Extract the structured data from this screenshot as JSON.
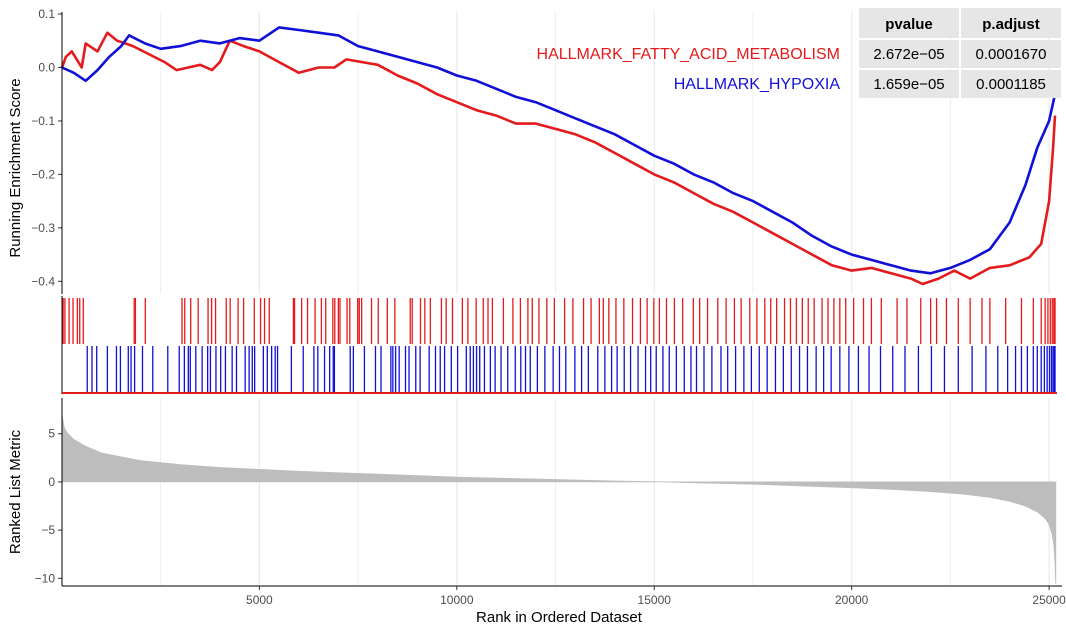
{
  "chart_data": {
    "type": "line",
    "x_range": [
      1,
      25200
    ],
    "x_ticks": [
      5000,
      10000,
      15000,
      20000,
      25000
    ],
    "xlabel": "Rank in Ordered Dataset",
    "colors": {
      "fatty": "#e41a1c",
      "hypoxia": "#1010d8",
      "metric_fill": "#bdbdbd",
      "grid": "#ebebeb",
      "table_bg": "#e6e6e6"
    },
    "es_panel": {
      "ylabel": "Running Enrichment Score",
      "ylim": [
        -0.42,
        0.1
      ],
      "y_ticks": [
        0.1,
        0.0,
        -0.1,
        -0.2,
        -0.3,
        -0.4
      ],
      "y_tick_labels": [
        "0.1",
        "0.0",
        "−0.1",
        "−0.2",
        "−0.3",
        "−0.4"
      ]
    },
    "series": [
      {
        "name": "HALLMARK_FATTY_ACID_METABOLISM",
        "pvalue": "2.672e−05",
        "padjust": "0.0001670",
        "color": "#e41a1c",
        "points": [
          [
            1,
            0.0
          ],
          [
            100,
            0.02
          ],
          [
            250,
            0.03
          ],
          [
            500,
            0.0
          ],
          [
            600,
            0.045
          ],
          [
            900,
            0.03
          ],
          [
            1150,
            0.065
          ],
          [
            1400,
            0.05
          ],
          [
            1800,
            0.04
          ],
          [
            2200,
            0.025
          ],
          [
            2600,
            0.01
          ],
          [
            2900,
            -0.005
          ],
          [
            3200,
            0.0
          ],
          [
            3500,
            0.005
          ],
          [
            3800,
            -0.005
          ],
          [
            4000,
            0.01
          ],
          [
            4250,
            0.05
          ],
          [
            4600,
            0.04
          ],
          [
            5000,
            0.03
          ],
          [
            5500,
            0.01
          ],
          [
            6000,
            -0.01
          ],
          [
            6500,
            0.0
          ],
          [
            6900,
            0.0
          ],
          [
            7200,
            0.015
          ],
          [
            7600,
            0.01
          ],
          [
            8000,
            0.005
          ],
          [
            8500,
            -0.015
          ],
          [
            9000,
            -0.03
          ],
          [
            9500,
            -0.05
          ],
          [
            10000,
            -0.065
          ],
          [
            10500,
            -0.08
          ],
          [
            11000,
            -0.09
          ],
          [
            11500,
            -0.105
          ],
          [
            12000,
            -0.105
          ],
          [
            12500,
            -0.115
          ],
          [
            13000,
            -0.125
          ],
          [
            13500,
            -0.14
          ],
          [
            14000,
            -0.16
          ],
          [
            14500,
            -0.18
          ],
          [
            15000,
            -0.2
          ],
          [
            15500,
            -0.215
          ],
          [
            16000,
            -0.235
          ],
          [
            16500,
            -0.255
          ],
          [
            17000,
            -0.27
          ],
          [
            17500,
            -0.29
          ],
          [
            18000,
            -0.31
          ],
          [
            18500,
            -0.33
          ],
          [
            19000,
            -0.35
          ],
          [
            19500,
            -0.37
          ],
          [
            20000,
            -0.38
          ],
          [
            20500,
            -0.375
          ],
          [
            21000,
            -0.385
          ],
          [
            21500,
            -0.395
          ],
          [
            21800,
            -0.405
          ],
          [
            22200,
            -0.395
          ],
          [
            22600,
            -0.38
          ],
          [
            23000,
            -0.395
          ],
          [
            23500,
            -0.375
          ],
          [
            24000,
            -0.37
          ],
          [
            24500,
            -0.355
          ],
          [
            24800,
            -0.33
          ],
          [
            25000,
            -0.25
          ],
          [
            25100,
            -0.15
          ],
          [
            25150,
            -0.09
          ]
        ]
      },
      {
        "name": "HALLMARK_HYPOXIA",
        "pvalue": "1.659e−05",
        "padjust": "0.0001185",
        "color": "#1010d8",
        "points": [
          [
            1,
            0.0
          ],
          [
            300,
            -0.01
          ],
          [
            600,
            -0.025
          ],
          [
            900,
            -0.005
          ],
          [
            1200,
            0.02
          ],
          [
            1500,
            0.04
          ],
          [
            1700,
            0.06
          ],
          [
            2100,
            0.045
          ],
          [
            2500,
            0.035
          ],
          [
            3000,
            0.04
          ],
          [
            3500,
            0.05
          ],
          [
            4000,
            0.045
          ],
          [
            4500,
            0.055
          ],
          [
            5000,
            0.05
          ],
          [
            5500,
            0.075
          ],
          [
            6000,
            0.07
          ],
          [
            6500,
            0.065
          ],
          [
            7000,
            0.06
          ],
          [
            7500,
            0.04
          ],
          [
            8000,
            0.03
          ],
          [
            8500,
            0.02
          ],
          [
            9000,
            0.01
          ],
          [
            9500,
            0.0
          ],
          [
            10000,
            -0.015
          ],
          [
            10500,
            -0.025
          ],
          [
            11000,
            -0.04
          ],
          [
            11500,
            -0.055
          ],
          [
            12000,
            -0.065
          ],
          [
            12500,
            -0.08
          ],
          [
            13000,
            -0.095
          ],
          [
            13500,
            -0.11
          ],
          [
            14000,
            -0.125
          ],
          [
            14500,
            -0.145
          ],
          [
            15000,
            -0.165
          ],
          [
            15500,
            -0.18
          ],
          [
            16000,
            -0.2
          ],
          [
            16500,
            -0.215
          ],
          [
            17000,
            -0.235
          ],
          [
            17500,
            -0.25
          ],
          [
            18000,
            -0.27
          ],
          [
            18500,
            -0.29
          ],
          [
            19000,
            -0.315
          ],
          [
            19500,
            -0.335
          ],
          [
            20000,
            -0.35
          ],
          [
            20500,
            -0.36
          ],
          [
            21000,
            -0.37
          ],
          [
            21500,
            -0.38
          ],
          [
            22000,
            -0.385
          ],
          [
            22500,
            -0.375
          ],
          [
            23000,
            -0.36
          ],
          [
            23500,
            -0.34
          ],
          [
            24000,
            -0.29
          ],
          [
            24400,
            -0.22
          ],
          [
            24700,
            -0.15
          ],
          [
            25000,
            -0.1
          ],
          [
            25150,
            -0.05
          ]
        ]
      }
    ],
    "table": {
      "headers": [
        "pvalue",
        "p.adjust"
      ]
    },
    "hits": {
      "fatty": [
        30,
        75,
        180,
        280,
        390,
        450,
        540,
        1830,
        1860,
        2110,
        3040,
        3110,
        3260,
        3450,
        3700,
        3790,
        3890,
        4160,
        4260,
        4460,
        4600,
        4870,
        5030,
        5130,
        5250,
        5860,
        5890,
        6070,
        6220,
        6410,
        6570,
        6680,
        6860,
        6910,
        7000,
        7040,
        7220,
        7290,
        7490,
        7530,
        7590,
        7840,
        8010,
        8240,
        8430,
        8820,
        8870,
        9080,
        9190,
        9330,
        9610,
        9730,
        9890,
        10140,
        10280,
        10490,
        10670,
        10790,
        10900,
        11180,
        11420,
        11610,
        11800,
        11910,
        12080,
        12280,
        12470,
        12730,
        12940,
        13210,
        13400,
        13610,
        13710,
        13850,
        14030,
        14230,
        14450,
        14650,
        14820,
        14990,
        15130,
        15310,
        15510,
        15720,
        15990,
        16150,
        16350,
        16610,
        16820,
        17030,
        17200,
        17420,
        17600,
        17800,
        17950,
        18100,
        18300,
        18450,
        18600,
        18750,
        18900,
        19050,
        19250,
        19400,
        19550,
        19700,
        19850,
        20050,
        20300,
        20500,
        20750,
        21150,
        21400,
        21750,
        22000,
        22150,
        22400,
        22700,
        23000,
        23300,
        23500,
        23900,
        24300,
        24600,
        24800,
        24900,
        24970,
        25030,
        25080,
        25120,
        25150
      ],
      "hypoxia": [
        640,
        760,
        880,
        1150,
        1380,
        1480,
        1680,
        1750,
        1840,
        2040,
        2300,
        2680,
        2970,
        3100,
        3200,
        3250,
        3390,
        3550,
        3690,
        3760,
        3900,
        4020,
        4140,
        4310,
        4420,
        4640,
        4740,
        4820,
        4880,
        5100,
        5200,
        5310,
        5400,
        5460,
        5810,
        6110,
        6380,
        6480,
        6650,
        6780,
        6870,
        6900,
        7300,
        7380,
        7660,
        7940,
        8080,
        8330,
        8380,
        8450,
        8540,
        8700,
        8790,
        8960,
        9070,
        9300,
        9460,
        9580,
        9690,
        9860,
        10020,
        10240,
        10340,
        10420,
        10500,
        10580,
        10700,
        10850,
        10970,
        11120,
        11290,
        11480,
        11620,
        11740,
        11860,
        12040,
        12230,
        12440,
        12600,
        12760,
        12990,
        13160,
        13330,
        13570,
        13750,
        13920,
        14060,
        14240,
        14400,
        14590,
        14780,
        14910,
        15050,
        15220,
        15380,
        15560,
        15760,
        15930,
        16070,
        16260,
        16460,
        16690,
        16860,
        17060,
        17270,
        17460,
        17660,
        17860,
        18070,
        18270,
        18470,
        18680,
        18880,
        19100,
        19290,
        19480,
        19700,
        19930,
        20170,
        20440,
        20730,
        21040,
        21350,
        21690,
        22020,
        22350,
        22700,
        23050,
        23400,
        23700,
        23950,
        24150,
        24300,
        24450,
        24600,
        24700,
        24800,
        24880,
        24950,
        25010,
        25060,
        25100,
        25130,
        25150
      ]
    },
    "metric_panel": {
      "ylabel": "Ranked List Metric",
      "ylim": [
        -10.8,
        8.5
      ],
      "y_ticks": [
        5,
        0,
        -5,
        -10
      ],
      "y_tick_labels": [
        "5",
        "0",
        "−5",
        "−10"
      ],
      "points": [
        [
          1,
          7.0
        ],
        [
          30,
          6.3
        ],
        [
          60,
          5.6
        ],
        [
          150,
          5.0
        ],
        [
          300,
          4.4
        ],
        [
          600,
          3.7
        ],
        [
          1000,
          3.0
        ],
        [
          1500,
          2.6
        ],
        [
          2000,
          2.2
        ],
        [
          2500,
          2.0
        ],
        [
          3000,
          1.8
        ],
        [
          4000,
          1.5
        ],
        [
          5000,
          1.3
        ],
        [
          6000,
          1.1
        ],
        [
          7000,
          0.95
        ],
        [
          8000,
          0.8
        ],
        [
          9000,
          0.65
        ],
        [
          10000,
          0.5
        ],
        [
          11000,
          0.4
        ],
        [
          12000,
          0.3
        ],
        [
          13000,
          0.2
        ],
        [
          14000,
          0.1
        ],
        [
          15000,
          0.02
        ],
        [
          16000,
          -0.08
        ],
        [
          17000,
          -0.18
        ],
        [
          18000,
          -0.3
        ],
        [
          19000,
          -0.45
        ],
        [
          20000,
          -0.6
        ],
        [
          21000,
          -0.78
        ],
        [
          22000,
          -1.0
        ],
        [
          22800,
          -1.25
        ],
        [
          23500,
          -1.6
        ],
        [
          24000,
          -2.0
        ],
        [
          24400,
          -2.5
        ],
        [
          24700,
          -3.1
        ],
        [
          24900,
          -3.8
        ],
        [
          25000,
          -4.4
        ],
        [
          25080,
          -5.5
        ],
        [
          25120,
          -6.5
        ],
        [
          25150,
          -8.5
        ],
        [
          25170,
          -10.6
        ]
      ]
    }
  }
}
